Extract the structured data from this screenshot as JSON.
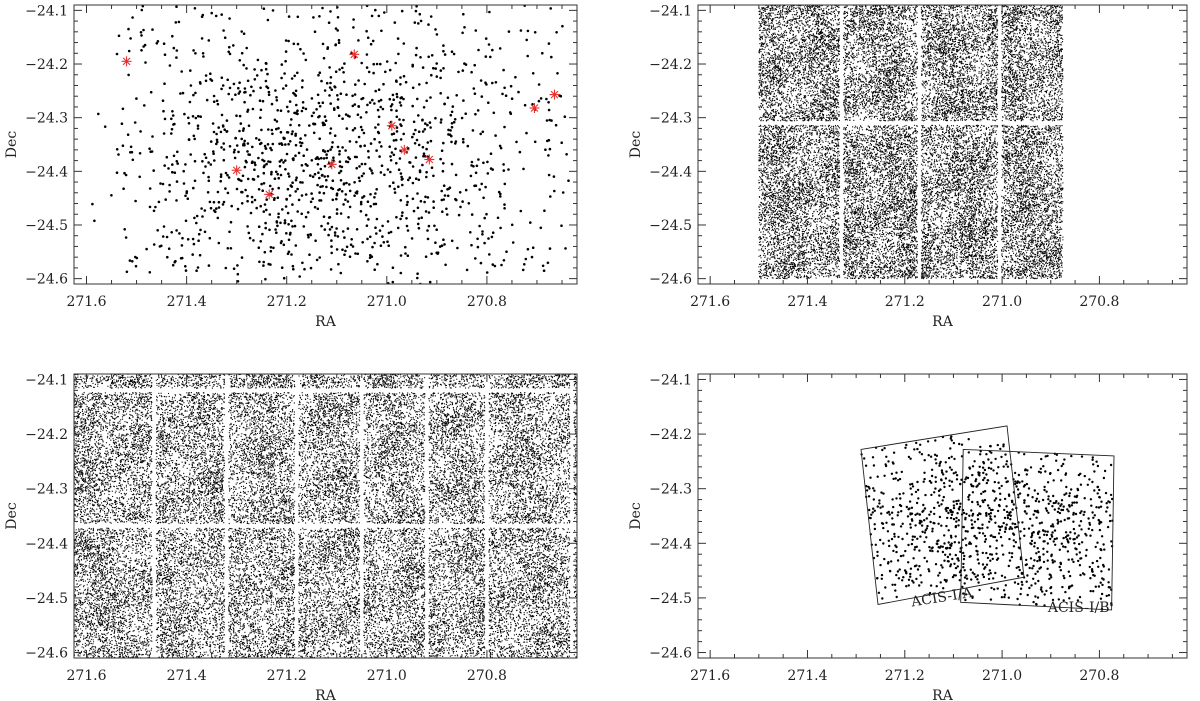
{
  "figure": {
    "panel_count": 4
  },
  "chart_data": [
    {
      "type": "scatter",
      "xlabel": "RA",
      "ylabel": "Dec",
      "xlim": [
        271.625,
        270.62
      ],
      "ylim": [
        -24.61,
        -24.09
      ],
      "xticks": [
        271.6,
        271.4,
        271.2,
        271.0,
        270.8
      ],
      "xtick_labels": [
        "271.6",
        "271.4",
        "271.2",
        "271.0",
        "270.8"
      ],
      "yticks": [
        -24.1,
        -24.2,
        -24.3,
        -24.4,
        -24.5,
        -24.6
      ],
      "ytick_labels": [
        "−24.1",
        "−24.2",
        "−24.3",
        "−24.4",
        "−24.5",
        "−24.6"
      ],
      "point_color": "#000000",
      "highlight_color": "#e8312f",
      "highlighted_points": [
        {
          "x": 271.52,
          "y": -24.195
        },
        {
          "x": 271.065,
          "y": -24.182
        },
        {
          "x": 270.99,
          "y": -24.315
        },
        {
          "x": 270.965,
          "y": -24.36
        },
        {
          "x": 270.915,
          "y": -24.378
        },
        {
          "x": 271.3,
          "y": -24.398
        },
        {
          "x": 271.11,
          "y": -24.387
        },
        {
          "x": 271.235,
          "y": -24.443
        },
        {
          "x": 270.705,
          "y": -24.282
        },
        {
          "x": 270.665,
          "y": -24.257
        }
      ],
      "distribution": {
        "kind": "clustered",
        "n_points": 1400,
        "center": [
          271.13,
          -24.37
        ],
        "spread": [
          0.17,
          0.12
        ],
        "x_range": [
          271.54,
          270.64
        ],
        "y_range": [
          -24.59,
          -24.09
        ]
      }
    },
    {
      "type": "scatter",
      "xlabel": "RA",
      "ylabel": "Dec",
      "xlim": [
        271.625,
        270.62
      ],
      "ylim": [
        -24.61,
        -24.09
      ],
      "xticks": [
        271.6,
        271.4,
        271.2,
        271.0,
        270.8
      ],
      "xtick_labels": [
        "271.6",
        "271.4",
        "271.2",
        "271.0",
        "270.8"
      ],
      "yticks": [
        -24.1,
        -24.2,
        -24.3,
        -24.4,
        -24.5,
        -24.6
      ],
      "ytick_labels": [
        "−24.1",
        "−24.2",
        "−24.3",
        "−24.4",
        "−24.5",
        "−24.6"
      ],
      "point_color": "#000000",
      "distribution": {
        "kind": "uniform-field",
        "n_points": 26000,
        "x_range": [
          271.5,
          270.875
        ],
        "y_range": [
          -24.6,
          -24.09
        ],
        "gaps_x": [
          271.33,
          271.17,
          271.005
        ],
        "gaps_y": [
          -24.31
        ]
      }
    },
    {
      "type": "scatter",
      "xlabel": "RA",
      "ylabel": "Dec",
      "xlim": [
        271.625,
        270.62
      ],
      "ylim": [
        -24.61,
        -24.09
      ],
      "xticks": [
        271.6,
        271.4,
        271.2,
        271.0,
        270.8
      ],
      "xtick_labels": [
        "271.6",
        "271.4",
        "271.2",
        "271.0",
        "270.8"
      ],
      "yticks": [
        -24.1,
        -24.2,
        -24.3,
        -24.4,
        -24.5,
        -24.6
      ],
      "ytick_labels": [
        "−24.1",
        "−24.2",
        "−24.3",
        "−24.4",
        "−24.5",
        "−24.6"
      ],
      "point_color": "#000000",
      "distribution": {
        "kind": "uniform-field",
        "n_points": 34000,
        "x_range": [
          271.625,
          270.62
        ],
        "y_range": [
          -24.61,
          -24.09
        ],
        "gaps_x": [
          271.465,
          271.32,
          271.18,
          271.05,
          270.92,
          270.8,
          270.63
        ],
        "gaps_y": [
          -24.12,
          -24.368
        ]
      }
    },
    {
      "type": "scatter",
      "xlabel": "RA",
      "ylabel": "Dec",
      "xlim": [
        271.625,
        270.62
      ],
      "ylim": [
        -24.61,
        -24.09
      ],
      "xticks": [
        271.6,
        271.4,
        271.2,
        271.0,
        270.8
      ],
      "xtick_labels": [
        "271.6",
        "271.4",
        "271.2",
        "271.0",
        "270.8"
      ],
      "yticks": [
        -24.1,
        -24.2,
        -24.3,
        -24.4,
        -24.5,
        -24.6
      ],
      "ytick_labels": [
        "−24.1",
        "−24.2",
        "−24.3",
        "−24.4",
        "−24.5",
        "−24.6"
      ],
      "point_color": "#000000",
      "fields": [
        {
          "name": "ACIS-I/A",
          "corners": [
            [
              271.29,
              -24.228
            ],
            [
              270.99,
              -24.185
            ],
            [
              270.955,
              -24.462
            ],
            [
              271.255,
              -24.512
            ]
          ]
        },
        {
          "name": "ACIS-I/B",
          "corners": [
            [
              271.08,
              -24.228
            ],
            [
              270.77,
              -24.24
            ],
            [
              270.775,
              -24.522
            ],
            [
              271.085,
              -24.508
            ]
          ]
        }
      ],
      "distribution": {
        "kind": "inside-fields",
        "n_points": 1100,
        "centers": [
          [
            271.12,
            -24.365
          ],
          [
            270.92,
            -24.372
          ]
        ],
        "spread": [
          0.09,
          0.07
        ]
      }
    }
  ]
}
